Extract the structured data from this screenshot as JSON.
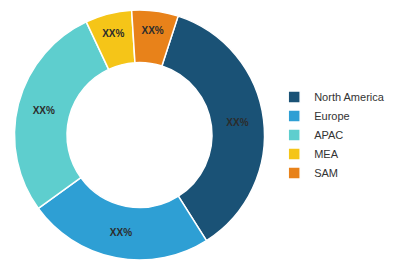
{
  "chart_data": {
    "type": "pie",
    "categories": [
      "North America",
      "Europe",
      "APAC",
      "MEA",
      "SAM"
    ],
    "values": [
      36,
      24,
      28,
      6,
      6
    ],
    "value_labels": [
      "XX%",
      "XX%",
      "XX%",
      "XX%",
      "XX%"
    ],
    "colors": [
      "#1a5276",
      "#2e9fd4",
      "#5ecece",
      "#f5c518",
      "#e8821a"
    ],
    "data_labels": true,
    "legend": "right"
  }
}
